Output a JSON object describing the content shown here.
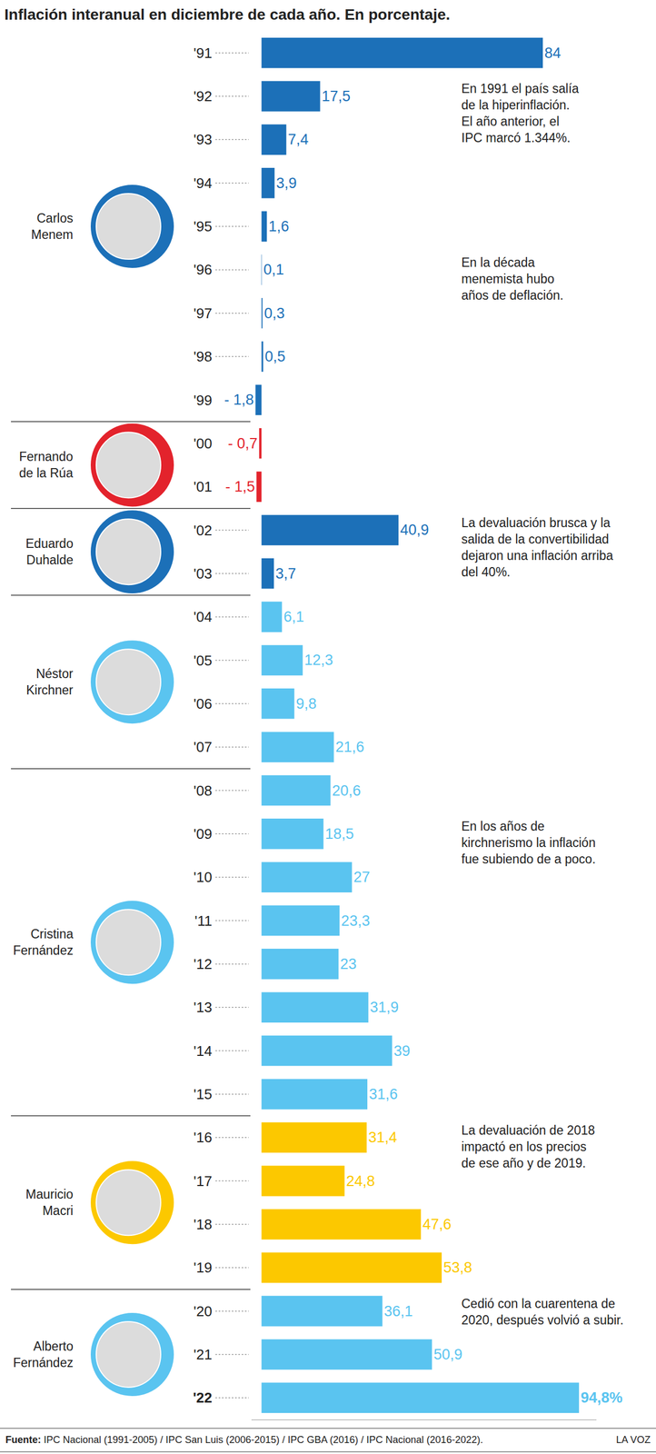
{
  "chart_data": {
    "type": "bar",
    "orientation": "horizontal",
    "title": "Inflación interanual en diciembre de cada año. En porcentaje.",
    "categories": [
      "'91",
      "'92",
      "'93",
      "'94",
      "'95",
      "'96",
      "'97",
      "'98",
      "'99",
      "'00",
      "'01",
      "'02",
      "'03",
      "'04",
      "'05",
      "'06",
      "'07",
      "'08",
      "'09",
      "'10",
      "'11",
      "'12",
      "'13",
      "'14",
      "'15",
      "'16",
      "'17",
      "'18",
      "'19",
      "'20",
      "'21",
      "'22"
    ],
    "values": [
      84,
      17.5,
      7.4,
      3.9,
      1.6,
      0.1,
      0.3,
      0.5,
      -1.8,
      -0.7,
      -1.5,
      40.9,
      3.7,
      6.1,
      12.3,
      9.8,
      21.6,
      20.6,
      18.5,
      27,
      23.3,
      23,
      31.9,
      39,
      31.6,
      31.4,
      24.8,
      47.6,
      53.8,
      36.1,
      50.9,
      94.8
    ],
    "value_labels": [
      "84",
      "17,5",
      "7,4",
      "3,9",
      "1,6",
      "0,1",
      "0,3",
      "0,5",
      "- 1,8",
      "- 0,7",
      "- 1,5",
      "40,9",
      "3,7",
      "6,1",
      "12,3",
      "9,8",
      "21,6",
      "20,6",
      "18,5",
      "27",
      "23,3",
      "23",
      "31,9",
      "39",
      "31,6",
      "31,4",
      "24,8",
      "47,6",
      "53,8",
      "36,1",
      "50,9",
      "94,8%"
    ],
    "colors": [
      "#1c70b8",
      "#1c70b8",
      "#1c70b8",
      "#1c70b8",
      "#1c70b8",
      "#1c70b8",
      "#1c70b8",
      "#1c70b8",
      "#1c70b8",
      "#e3232c",
      "#e3232c",
      "#1c70b8",
      "#1c70b8",
      "#5ac4f0",
      "#5ac4f0",
      "#5ac4f0",
      "#5ac4f0",
      "#5ac4f0",
      "#5ac4f0",
      "#5ac4f0",
      "#5ac4f0",
      "#5ac4f0",
      "#5ac4f0",
      "#5ac4f0",
      "#5ac4f0",
      "#fcc800",
      "#fcc800",
      "#fcc800",
      "#fcc800",
      "#5ac4f0",
      "#5ac4f0",
      "#5ac4f0"
    ],
    "data_labels": true,
    "tick_labels": "y",
    "grid": false,
    "xlim": [
      -3,
      100
    ],
    "xticks": [],
    "presidents": [
      {
        "name": "Carlos Menem",
        "color": "#1c70b8",
        "from": "'91",
        "to": "'99"
      },
      {
        "name": "Fernando de la Rúa",
        "color": "#e3232c",
        "from": "'00",
        "to": "'01"
      },
      {
        "name": "Eduardo Duhalde",
        "color": "#1c70b8",
        "from": "'02",
        "to": "'03"
      },
      {
        "name": "Néstor Kirchner",
        "color": "#5ac4f0",
        "from": "'04",
        "to": "'07"
      },
      {
        "name": "Cristina Fernández",
        "color": "#5ac4f0",
        "from": "'08",
        "to": "'15"
      },
      {
        "name": "Mauricio Macri",
        "color": "#fcc800",
        "from": "'16",
        "to": "'19"
      },
      {
        "name": "Alberto Fernández",
        "color": "#5ac4f0",
        "from": "'20",
        "to": "'22"
      }
    ],
    "annotations": [
      {
        "category": "'92",
        "lines": [
          "En 1991 el país salía",
          "de la hiperinflación.",
          "El año anterior, el",
          "IPC marcó 1.344%."
        ]
      },
      {
        "category": "'96",
        "lines": [
          "En la década",
          "menemista hubo",
          "años de deflación."
        ]
      },
      {
        "category": "'02",
        "lines": [
          "La devaluación brusca y la",
          "salida de la convertibilidad",
          "dejaron una inflación arriba",
          "del 40%."
        ]
      },
      {
        "category": "'09",
        "lines": [
          "En los años de",
          "kirchnerismo la inflación",
          "fue subiendo de a poco."
        ]
      },
      {
        "category": "'16",
        "lines": [
          "La devaluación de 2018",
          "impactó en los precios",
          "de ese año y de 2019."
        ]
      },
      {
        "category": "'20",
        "lines": [
          "Cedió con la cuarentena de",
          "2020, después volvió a subir."
        ]
      }
    ],
    "source_label": "Fuente:",
    "source": "IPC Nacional (1991-2005) / IPC San Luis (2006-2015) / IPC GBA (2016) / IPC Nacional (2016-2022).",
    "credit": "LA VOZ"
  }
}
